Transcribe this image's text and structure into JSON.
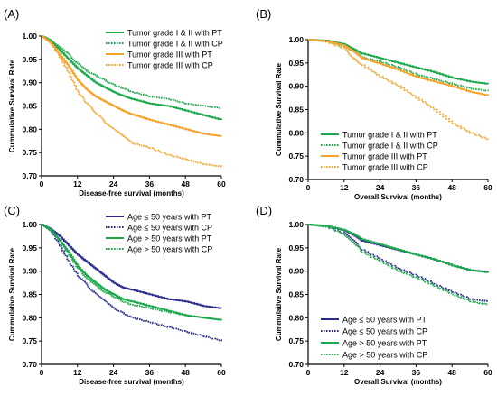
{
  "colors": {
    "green": "#1aa84b",
    "orange": "#f5a22a",
    "navy": "#2b2d8c"
  },
  "chart_data": [
    {
      "panel_label": "(A)",
      "type": "line",
      "xlabel": "Disease-free survival (months)",
      "ylabel": "Cummulative Survival Rate",
      "xlim": [
        0,
        60
      ],
      "ylim": [
        0.7,
        1.0
      ],
      "xticks": [
        "0",
        "12",
        "24",
        "36",
        "48",
        "60"
      ],
      "yticks": [
        "0.70",
        "0.75",
        "0.80",
        "0.85",
        "0.90",
        "0.95",
        "1.00"
      ],
      "legend_position": "top-right",
      "series": [
        {
          "name": "Tumor grade I & II with PT",
          "color": "green",
          "dash": "solid",
          "points": [
            [
              0,
              1.0
            ],
            [
              3,
              0.99
            ],
            [
              6,
              0.97
            ],
            [
              9,
              0.95
            ],
            [
              12,
              0.93
            ],
            [
              15,
              0.915
            ],
            [
              18,
              0.9
            ],
            [
              21,
              0.89
            ],
            [
              24,
              0.88
            ],
            [
              27,
              0.872
            ],
            [
              30,
              0.865
            ],
            [
              36,
              0.855
            ],
            [
              42,
              0.85
            ],
            [
              48,
              0.84
            ],
            [
              54,
              0.83
            ],
            [
              60,
              0.82
            ]
          ]
        },
        {
          "name": "Tumor grade I & II with CP",
          "color": "green",
          "dash": "dotted",
          "points": [
            [
              0,
              1.0
            ],
            [
              3,
              0.99
            ],
            [
              6,
              0.975
            ],
            [
              9,
              0.96
            ],
            [
              12,
              0.94
            ],
            [
              15,
              0.925
            ],
            [
              18,
              0.915
            ],
            [
              21,
              0.905
            ],
            [
              24,
              0.895
            ],
            [
              27,
              0.888
            ],
            [
              30,
              0.88
            ],
            [
              36,
              0.87
            ],
            [
              42,
              0.865
            ],
            [
              48,
              0.855
            ],
            [
              54,
              0.85
            ],
            [
              60,
              0.845
            ]
          ]
        },
        {
          "name": "Tumor grade III with PT",
          "color": "orange",
          "dash": "solid",
          "points": [
            [
              0,
              1.0
            ],
            [
              3,
              0.985
            ],
            [
              6,
              0.96
            ],
            [
              9,
              0.935
            ],
            [
              12,
              0.905
            ],
            [
              15,
              0.885
            ],
            [
              18,
              0.87
            ],
            [
              21,
              0.86
            ],
            [
              24,
              0.85
            ],
            [
              27,
              0.84
            ],
            [
              30,
              0.832
            ],
            [
              36,
              0.82
            ],
            [
              42,
              0.81
            ],
            [
              48,
              0.8
            ],
            [
              54,
              0.79
            ],
            [
              60,
              0.785
            ]
          ]
        },
        {
          "name": "Tumor grade III with CP",
          "color": "orange",
          "dash": "dotted",
          "points": [
            [
              0,
              1.0
            ],
            [
              3,
              0.985
            ],
            [
              6,
              0.955
            ],
            [
              9,
              0.92
            ],
            [
              12,
              0.88
            ],
            [
              15,
              0.855
            ],
            [
              18,
              0.835
            ],
            [
              21,
              0.815
            ],
            [
              24,
              0.8
            ],
            [
              27,
              0.785
            ],
            [
              30,
              0.77
            ],
            [
              36,
              0.76
            ],
            [
              42,
              0.745
            ],
            [
              48,
              0.735
            ],
            [
              54,
              0.725
            ],
            [
              60,
              0.72
            ]
          ]
        }
      ]
    },
    {
      "panel_label": "(B)",
      "type": "line",
      "xlabel": "Overall Survival (months)",
      "ylabel": "Cummulative Survival Rate",
      "xlim": [
        0,
        60
      ],
      "ylim": [
        0.7,
        1.0
      ],
      "xticks": [
        "0",
        "12",
        "24",
        "36",
        "48",
        "60"
      ],
      "yticks": [
        "0.70",
        "0.75",
        "0.80",
        "0.85",
        "0.90",
        "0.95",
        "1.00"
      ],
      "legend_position": "bottom-center",
      "series": [
        {
          "name": "Tumor grade I & II with PT",
          "color": "green",
          "dash": "solid",
          "points": [
            [
              0,
              1.0
            ],
            [
              6,
              0.998
            ],
            [
              12,
              0.99
            ],
            [
              15,
              0.98
            ],
            [
              18,
              0.97
            ],
            [
              24,
              0.96
            ],
            [
              30,
              0.95
            ],
            [
              36,
              0.94
            ],
            [
              42,
              0.93
            ],
            [
              48,
              0.918
            ],
            [
              54,
              0.91
            ],
            [
              60,
              0.905
            ]
          ]
        },
        {
          "name": "Tumor grade I & II with CP",
          "color": "green",
          "dash": "dotted",
          "points": [
            [
              0,
              1.0
            ],
            [
              6,
              0.997
            ],
            [
              12,
              0.985
            ],
            [
              15,
              0.975
            ],
            [
              18,
              0.962
            ],
            [
              24,
              0.952
            ],
            [
              30,
              0.94
            ],
            [
              36,
              0.925
            ],
            [
              42,
              0.915
            ],
            [
              48,
              0.905
            ],
            [
              54,
              0.895
            ],
            [
              60,
              0.89
            ]
          ]
        },
        {
          "name": "Tumor grade III with PT",
          "color": "orange",
          "dash": "solid",
          "points": [
            [
              0,
              1.0
            ],
            [
              6,
              0.997
            ],
            [
              12,
              0.987
            ],
            [
              15,
              0.975
            ],
            [
              18,
              0.96
            ],
            [
              24,
              0.948
            ],
            [
              30,
              0.935
            ],
            [
              36,
              0.92
            ],
            [
              42,
              0.91
            ],
            [
              48,
              0.9
            ],
            [
              54,
              0.888
            ],
            [
              60,
              0.88
            ]
          ]
        },
        {
          "name": "Tumor grade III with CP",
          "color": "orange",
          "dash": "dotted",
          "points": [
            [
              0,
              1.0
            ],
            [
              6,
              0.995
            ],
            [
              12,
              0.98
            ],
            [
              15,
              0.96
            ],
            [
              18,
              0.945
            ],
            [
              24,
              0.92
            ],
            [
              30,
              0.9
            ],
            [
              36,
              0.875
            ],
            [
              42,
              0.85
            ],
            [
              48,
              0.82
            ],
            [
              54,
              0.8
            ],
            [
              60,
              0.785
            ]
          ]
        }
      ]
    },
    {
      "panel_label": "(C)",
      "type": "line",
      "xlabel": "Disease-free survival (months)",
      "ylabel": "Cummulative Survival Rate",
      "xlim": [
        0,
        60
      ],
      "ylim": [
        0.7,
        1.0
      ],
      "xticks": [
        "0",
        "12",
        "24",
        "36",
        "48",
        "60"
      ],
      "yticks": [
        "0.70",
        "0.75",
        "0.80",
        "0.85",
        "0.90",
        "0.95",
        "1.00"
      ],
      "legend_position": "top-right",
      "series": [
        {
          "name": "Age ≤ 50 years with PT",
          "color": "navy",
          "dash": "solid",
          "points": [
            [
              0,
              1.0
            ],
            [
              3,
              0.99
            ],
            [
              6,
              0.975
            ],
            [
              9,
              0.955
            ],
            [
              12,
              0.935
            ],
            [
              15,
              0.92
            ],
            [
              18,
              0.905
            ],
            [
              21,
              0.89
            ],
            [
              24,
              0.875
            ],
            [
              27,
              0.865
            ],
            [
              30,
              0.86
            ],
            [
              36,
              0.85
            ],
            [
              42,
              0.84
            ],
            [
              48,
              0.835
            ],
            [
              54,
              0.825
            ],
            [
              60,
              0.82
            ]
          ]
        },
        {
          "name": "Age ≤ 50 years  with CP",
          "color": "navy",
          "dash": "dotted",
          "points": [
            [
              0,
              1.0
            ],
            [
              3,
              0.985
            ],
            [
              6,
              0.955
            ],
            [
              9,
              0.92
            ],
            [
              12,
              0.89
            ],
            [
              15,
              0.87
            ],
            [
              18,
              0.85
            ],
            [
              21,
              0.835
            ],
            [
              24,
              0.82
            ],
            [
              27,
              0.81
            ],
            [
              30,
              0.8
            ],
            [
              36,
              0.79
            ],
            [
              42,
              0.78
            ],
            [
              48,
              0.77
            ],
            [
              54,
              0.76
            ],
            [
              60,
              0.75
            ]
          ]
        },
        {
          "name": "Age > 50 years with  PT",
          "color": "green",
          "dash": "solid",
          "points": [
            [
              0,
              1.0
            ],
            [
              3,
              0.988
            ],
            [
              6,
              0.965
            ],
            [
              9,
              0.94
            ],
            [
              12,
              0.91
            ],
            [
              15,
              0.89
            ],
            [
              18,
              0.875
            ],
            [
              21,
              0.86
            ],
            [
              24,
              0.85
            ],
            [
              27,
              0.84
            ],
            [
              30,
              0.835
            ],
            [
              36,
              0.825
            ],
            [
              42,
              0.815
            ],
            [
              48,
              0.805
            ],
            [
              54,
              0.8
            ],
            [
              60,
              0.795
            ]
          ]
        },
        {
          "name": "Age > 50 years with CP",
          "color": "green",
          "dash": "dotted",
          "points": [
            [
              0,
              1.0
            ],
            [
              3,
              0.988
            ],
            [
              6,
              0.965
            ],
            [
              9,
              0.935
            ],
            [
              12,
              0.905
            ],
            [
              15,
              0.885
            ],
            [
              18,
              0.868
            ],
            [
              21,
              0.855
            ],
            [
              24,
              0.845
            ],
            [
              27,
              0.835
            ],
            [
              30,
              0.828
            ],
            [
              36,
              0.82
            ],
            [
              42,
              0.812
            ],
            [
              48,
              0.805
            ],
            [
              54,
              0.8
            ],
            [
              60,
              0.795
            ]
          ]
        }
      ]
    },
    {
      "panel_label": "(D)",
      "type": "line",
      "xlabel": "Overall Survival (months)",
      "ylabel": "Cummulative Survival Rate",
      "xlim": [
        0,
        60
      ],
      "ylim": [
        0.7,
        1.0
      ],
      "xticks": [
        "0",
        "12",
        "24",
        "36",
        "48",
        "60"
      ],
      "yticks": [
        "0.70",
        "0.75",
        "0.80",
        "0.85",
        "0.90",
        "0.95",
        "1.00"
      ],
      "legend_position": "bottom-center",
      "series": [
        {
          "name": "Age ≤ 50 years with PT",
          "color": "navy",
          "dash": "solid",
          "points": [
            [
              0,
              1.0
            ],
            [
              6,
              0.997
            ],
            [
              12,
              0.987
            ],
            [
              15,
              0.978
            ],
            [
              18,
              0.965
            ],
            [
              24,
              0.955
            ],
            [
              30,
              0.945
            ],
            [
              36,
              0.935
            ],
            [
              42,
              0.925
            ],
            [
              48,
              0.912
            ],
            [
              54,
              0.902
            ],
            [
              60,
              0.898
            ]
          ]
        },
        {
          "name": "Age ≤ 50 years  with CP",
          "color": "navy",
          "dash": "dotted",
          "points": [
            [
              0,
              1.0
            ],
            [
              6,
              0.995
            ],
            [
              12,
              0.98
            ],
            [
              15,
              0.965
            ],
            [
              18,
              0.945
            ],
            [
              24,
              0.925
            ],
            [
              30,
              0.905
            ],
            [
              36,
              0.89
            ],
            [
              42,
              0.872
            ],
            [
              48,
              0.855
            ],
            [
              54,
              0.84
            ],
            [
              60,
              0.835
            ]
          ]
        },
        {
          "name": "Age > 50 years with PT",
          "color": "green",
          "dash": "solid",
          "points": [
            [
              0,
              1.0
            ],
            [
              6,
              0.997
            ],
            [
              12,
              0.988
            ],
            [
              15,
              0.98
            ],
            [
              18,
              0.968
            ],
            [
              24,
              0.957
            ],
            [
              30,
              0.946
            ],
            [
              36,
              0.935
            ],
            [
              42,
              0.925
            ],
            [
              48,
              0.912
            ],
            [
              54,
              0.902
            ],
            [
              60,
              0.897
            ]
          ]
        },
        {
          "name": "Age > 50 years with CP",
          "color": "green",
          "dash": "dotted",
          "points": [
            [
              0,
              1.0
            ],
            [
              6,
              0.995
            ],
            [
              12,
              0.978
            ],
            [
              15,
              0.962
            ],
            [
              18,
              0.94
            ],
            [
              24,
              0.92
            ],
            [
              30,
              0.9
            ],
            [
              36,
              0.885
            ],
            [
              42,
              0.868
            ],
            [
              48,
              0.85
            ],
            [
              54,
              0.835
            ],
            [
              60,
              0.828
            ]
          ]
        }
      ]
    }
  ]
}
